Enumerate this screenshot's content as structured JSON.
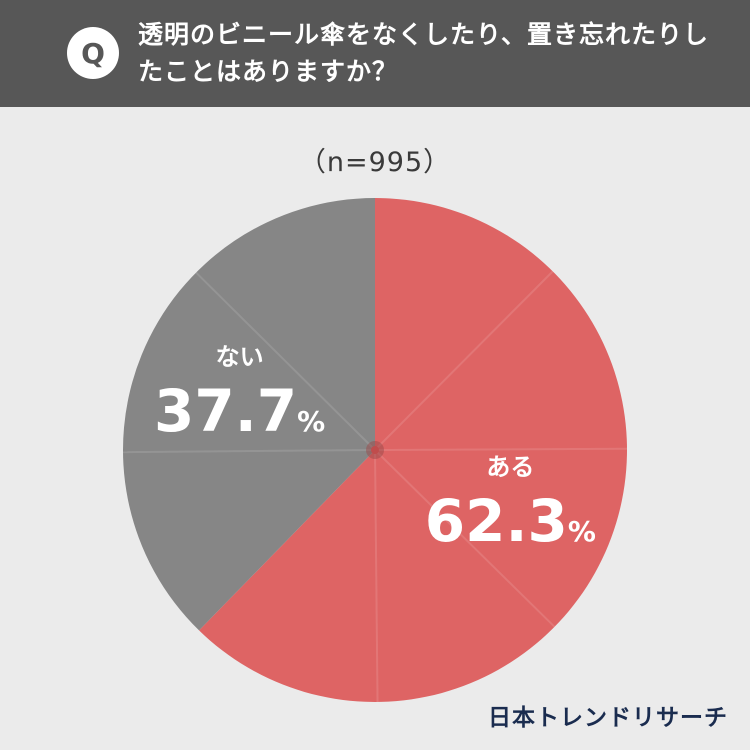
{
  "header": {
    "badge": "Q",
    "question": "透明のビニール傘をなくしたり、置き忘れたりしたことはありますか？"
  },
  "sample_size": "（n=995）",
  "chart_data": {
    "type": "pie",
    "categories": [
      "ある",
      "ない"
    ],
    "values": [
      62.3,
      37.7
    ],
    "value_labels": [
      "62.3",
      "37.7"
    ],
    "unit": "%",
    "colors": [
      "#de6464",
      "#868686"
    ],
    "start_angle_deg": 0,
    "direction": "clockwise"
  },
  "footer": {
    "brand": "日本トレンドリサーチ"
  }
}
